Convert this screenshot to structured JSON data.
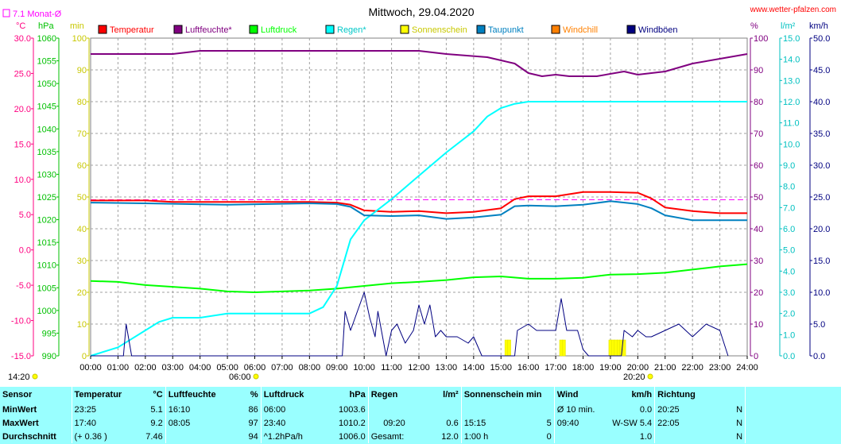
{
  "header": {
    "date_title": "Mittwoch, 29.04.2020",
    "site": "www.wetter-pfalzen.com",
    "monat_label": "7.1 Monat-Ø"
  },
  "units": {
    "temp": "°C",
    "hpa": "hPa",
    "min": "min",
    "percent": "%",
    "lm2": "l/m²",
    "kmh": "km/h"
  },
  "legend": [
    {
      "label": "Temperatur",
      "color": "#ff0000"
    },
    {
      "label": "Luftfeuchte*",
      "color": "#800080"
    },
    {
      "label": "Luftdruck",
      "color": "#00ff00"
    },
    {
      "label": "Regen*",
      "color": "#00ffff"
    },
    {
      "label": "Sonnenschein",
      "color": "#ffff00"
    },
    {
      "label": "Taupunkt",
      "color": "#0080c0"
    },
    {
      "label": "Windchill",
      "color": "#ff8000"
    },
    {
      "label": "Windböen",
      "color": "#000080"
    }
  ],
  "axis_colors": {
    "temp": "#ff0080",
    "hpa": "#00c000",
    "min": "#c8c800",
    "percent": "#800080",
    "rain": "#00c0c0",
    "wind": "#000080"
  },
  "sun_markers": {
    "rise": "06:00",
    "set": "20:20",
    "left_time": "14:20"
  },
  "chart_data": {
    "type": "line",
    "x_unit": "hours",
    "x_ticks": [
      "00:00",
      "01:00",
      "02:00",
      "03:00",
      "04:00",
      "05:00",
      "06:00",
      "07:00",
      "08:00",
      "09:00",
      "10:00",
      "11:00",
      "12:00",
      "13:00",
      "14:00",
      "15:00",
      "16:00",
      "17:00",
      "18:00",
      "19:00",
      "20:00",
      "21:00",
      "22:00",
      "23:00",
      "24:00"
    ],
    "axes": {
      "temp": {
        "range": [
          -15,
          30
        ],
        "ticks": [
          "30.0",
          "25.0",
          "20.0",
          "15.0",
          "10.0",
          "5.0",
          "0.0",
          "-5.0",
          "-10.0",
          "-15.0"
        ]
      },
      "pressure": {
        "range": [
          990,
          1060
        ],
        "ticks": [
          "1060",
          "1055",
          "1050",
          "1045",
          "1040",
          "1035",
          "1030",
          "1025",
          "1020",
          "1015",
          "1010",
          "1005",
          "1000",
          "995",
          "990"
        ]
      },
      "minutes": {
        "range": [
          0,
          100
        ],
        "ticks": [
          "100",
          "90",
          "80",
          "70",
          "60",
          "50",
          "40",
          "30",
          "20",
          "10",
          "0"
        ]
      },
      "humidity": {
        "range": [
          0,
          100
        ],
        "ticks": [
          "100",
          "90",
          "80",
          "70",
          "60",
          "50",
          "40",
          "30",
          "20",
          "10",
          "0"
        ]
      },
      "rain": {
        "range": [
          0,
          15
        ],
        "ticks": [
          "15.0",
          "14.0",
          "13.0",
          "12.0",
          "11.0",
          "10.0",
          "9.0",
          "8.0",
          "7.0",
          "6.0",
          "5.0",
          "4.0",
          "3.0",
          "2.0",
          "1.0",
          "0.0"
        ]
      },
      "wind": {
        "range": [
          0,
          50
        ],
        "ticks": [
          "50.0",
          "45.0",
          "40.0",
          "35.0",
          "30.0",
          "25.0",
          "20.0",
          "15.0",
          "10.0",
          "5.0",
          "0.0"
        ]
      }
    },
    "monthly_avg_temp": 7.1,
    "series": [
      {
        "name": "Temperatur",
        "axis": "temp",
        "color": "#ff0000",
        "points": [
          [
            0,
            7.0
          ],
          [
            2,
            7.0
          ],
          [
            3,
            6.8
          ],
          [
            8,
            6.8
          ],
          [
            9,
            6.7
          ],
          [
            9.5,
            6.4
          ],
          [
            10,
            5.6
          ],
          [
            11,
            5.4
          ],
          [
            12,
            5.5
          ],
          [
            13,
            5.2
          ],
          [
            14,
            5.4
          ],
          [
            15,
            5.9
          ],
          [
            15.5,
            7.2
          ],
          [
            16,
            7.6
          ],
          [
            17,
            7.6
          ],
          [
            18,
            8.2
          ],
          [
            19,
            8.2
          ],
          [
            20,
            8.1
          ],
          [
            20.5,
            7.3
          ],
          [
            21,
            6.0
          ],
          [
            22,
            5.5
          ],
          [
            23,
            5.2
          ],
          [
            24,
            5.2
          ]
        ]
      },
      {
        "name": "Luftfeuchte*",
        "axis": "humidity",
        "color": "#800080",
        "points": [
          [
            0,
            95
          ],
          [
            3,
            95
          ],
          [
            4,
            96
          ],
          [
            12,
            96
          ],
          [
            13,
            95
          ],
          [
            14.5,
            94
          ],
          [
            15.5,
            92
          ],
          [
            16,
            89
          ],
          [
            16.5,
            88
          ],
          [
            17,
            88.5
          ],
          [
            17.5,
            88
          ],
          [
            18,
            88
          ],
          [
            18.5,
            88
          ],
          [
            19.5,
            89.5
          ],
          [
            20,
            88.5
          ],
          [
            21,
            89.5
          ],
          [
            22,
            92
          ],
          [
            23,
            93.5
          ],
          [
            24,
            95
          ]
        ]
      },
      {
        "name": "Luftdruck",
        "axis": "pressure",
        "color": "#00ff00",
        "points": [
          [
            0,
            1006.5
          ],
          [
            1,
            1006.3
          ],
          [
            2,
            1005.6
          ],
          [
            3,
            1005.2
          ],
          [
            4,
            1004.8
          ],
          [
            5,
            1004.2
          ],
          [
            6,
            1004.0
          ],
          [
            8,
            1004.4
          ],
          [
            9,
            1004.8
          ],
          [
            10,
            1005.4
          ],
          [
            11,
            1006.0
          ],
          [
            12,
            1006.3
          ],
          [
            13,
            1006.7
          ],
          [
            14,
            1007.3
          ],
          [
            15,
            1007.5
          ],
          [
            16,
            1007.0
          ],
          [
            17,
            1007.0
          ],
          [
            18,
            1007.2
          ],
          [
            19,
            1007.9
          ],
          [
            20,
            1008.0
          ],
          [
            21,
            1008.3
          ],
          [
            22,
            1009.0
          ],
          [
            23,
            1009.7
          ],
          [
            24,
            1010.2
          ]
        ]
      },
      {
        "name": "Regen*",
        "axis": "rain",
        "color": "#00ffff",
        "points": [
          [
            0,
            0
          ],
          [
            1,
            0.4
          ],
          [
            1.5,
            0.8
          ],
          [
            2,
            1.2
          ],
          [
            2.5,
            1.6
          ],
          [
            3,
            1.8
          ],
          [
            4,
            1.8
          ],
          [
            5,
            2.0
          ],
          [
            6,
            2.0
          ],
          [
            7,
            2.0
          ],
          [
            8,
            2.0
          ],
          [
            8.5,
            2.3
          ],
          [
            9,
            3.3
          ],
          [
            9.5,
            5.5
          ],
          [
            10,
            6.4
          ],
          [
            11,
            7.4
          ],
          [
            12,
            8.5
          ],
          [
            13,
            9.6
          ],
          [
            14,
            10.6
          ],
          [
            14.5,
            11.3
          ],
          [
            15,
            11.7
          ],
          [
            15.5,
            11.9
          ],
          [
            16,
            12.0
          ],
          [
            24,
            12.0
          ]
        ]
      },
      {
        "name": "Taupunkt",
        "axis": "temp",
        "color": "#0080c0",
        "points": [
          [
            0,
            6.7
          ],
          [
            2,
            6.6
          ],
          [
            5,
            6.4
          ],
          [
            8,
            6.6
          ],
          [
            9,
            6.5
          ],
          [
            9.5,
            6.1
          ],
          [
            10,
            4.9
          ],
          [
            11,
            4.8
          ],
          [
            12,
            4.9
          ],
          [
            13,
            4.4
          ],
          [
            14,
            4.6
          ],
          [
            15,
            5.0
          ],
          [
            15.5,
            6.2
          ],
          [
            16,
            6.3
          ],
          [
            17,
            6.2
          ],
          [
            18,
            6.4
          ],
          [
            19,
            6.9
          ],
          [
            20,
            6.5
          ],
          [
            20.5,
            5.9
          ],
          [
            21,
            4.9
          ],
          [
            22,
            4.2
          ],
          [
            23,
            4.2
          ],
          [
            24,
            4.2
          ]
        ]
      },
      {
        "name": "Windböen",
        "axis": "wind",
        "color": "#000080",
        "points": [
          [
            0,
            0
          ],
          [
            1.2,
            0
          ],
          [
            1.3,
            5
          ],
          [
            1.5,
            0
          ],
          [
            9.2,
            0
          ],
          [
            9.3,
            7
          ],
          [
            9.5,
            4
          ],
          [
            10,
            10
          ],
          [
            10.2,
            6
          ],
          [
            10.4,
            3
          ],
          [
            10.5,
            7
          ],
          [
            10.8,
            0
          ],
          [
            11,
            4
          ],
          [
            11.2,
            5
          ],
          [
            11.5,
            2
          ],
          [
            11.8,
            4
          ],
          [
            12,
            8
          ],
          [
            12.2,
            5
          ],
          [
            12.4,
            8
          ],
          [
            12.6,
            3
          ],
          [
            12.8,
            4
          ],
          [
            13,
            3
          ],
          [
            13.4,
            3
          ],
          [
            13.8,
            2
          ],
          [
            14,
            3
          ],
          [
            14.3,
            0
          ],
          [
            15.5,
            0
          ],
          [
            15.6,
            4
          ],
          [
            16,
            5
          ],
          [
            16.3,
            4
          ],
          [
            16.6,
            4
          ],
          [
            17,
            4
          ],
          [
            17.2,
            9
          ],
          [
            17.4,
            4
          ],
          [
            17.8,
            4
          ],
          [
            18,
            1
          ],
          [
            18.2,
            0
          ],
          [
            19.4,
            0
          ],
          [
            19.5,
            4
          ],
          [
            19.8,
            3
          ],
          [
            20,
            4
          ],
          [
            20.3,
            3
          ],
          [
            20.5,
            3
          ],
          [
            21,
            4
          ],
          [
            21.5,
            5
          ],
          [
            22,
            3
          ],
          [
            22.5,
            5
          ],
          [
            23,
            4
          ],
          [
            23.3,
            0
          ]
        ]
      }
    ],
    "sunshine_bars": [
      15.2,
      15.3,
      17.2,
      17.3,
      19.0,
      19.1,
      19.2,
      19.3,
      19.4,
      19.5
    ]
  },
  "stats": {
    "headers": {
      "sensor": "Sensor",
      "temperatur": "Temperatur",
      "temp_unit": "°C",
      "luftfeuchte": "Luftfeuchte",
      "hum_unit": "%",
      "luftdruck": "Luftdruck",
      "press_unit": "hPa",
      "regen": "Regen",
      "rain_unit": "l/m²",
      "sonnenschein": "Sonnenschein min",
      "wind": "Wind",
      "wind_unit": "km/h",
      "richtung": "Richtung"
    },
    "rows": [
      {
        "label": "MinWert",
        "t_time": "23:25",
        "t_val": "5.1",
        "h_time": "16:10",
        "h_val": "86",
        "p_time": "06:00",
        "p_val": "1003.6",
        "r_time": "",
        "r_val": "",
        "s_time": "",
        "s_val": "",
        "w_time": "Ø 10 min.",
        "w_val": "0.0",
        "d_time": "20:25",
        "d_val": "N"
      },
      {
        "label": "MaxWert",
        "t_time": "17:40",
        "t_val": "9.2",
        "h_time": "08:05",
        "h_val": "97",
        "p_time": "23:40",
        "p_val": "1010.2",
        "r_time": "09:20",
        "r_val": "0.6",
        "s_time": "15:15",
        "s_val": "5",
        "w_time": "09:40",
        "w_val": "W-SW 5.4",
        "d_time": "22:05",
        "d_val": "N"
      },
      {
        "label": "Durchschnitt",
        "t_time": "(+ 0.36 )",
        "t_val": "7.46",
        "h_time": "",
        "h_val": "94",
        "p_time": "^1.2hPa/h",
        "p_val": "1006.0",
        "r_time": "Gesamt:",
        "r_val": "12.0",
        "s_time": "1:00 h",
        "s_val": "0",
        "w_time": "",
        "w_val": "1.0",
        "d_time": "",
        "d_val": "N"
      }
    ]
  }
}
